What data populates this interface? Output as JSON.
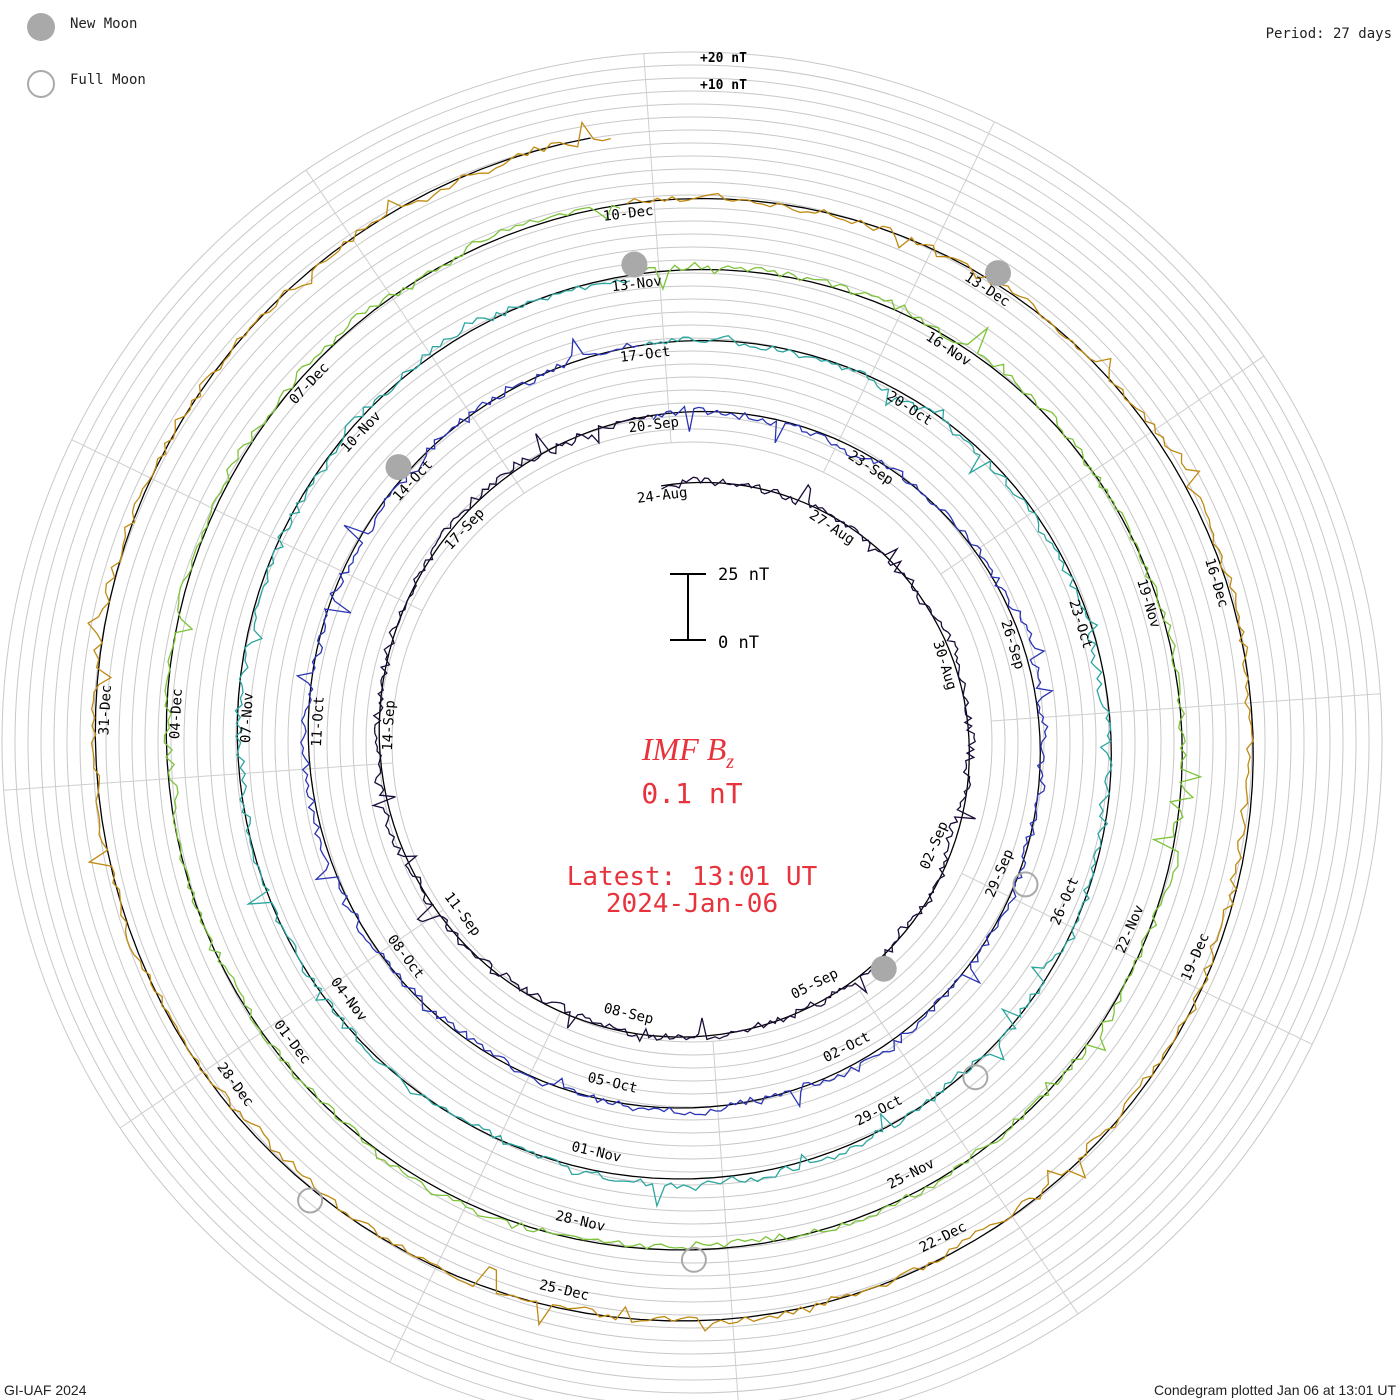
{
  "chart_data": {
    "type": "line",
    "layout": "polar-spiral",
    "title": "IMF B",
    "title_subscript": "z",
    "current_value": "0.1 nT",
    "latest_label": "Latest: 13:01 UT",
    "latest_date": "2024-Jan-06",
    "period_label": "Period: 27 days",
    "scale_bar": {
      "top_label": "25 nT",
      "bottom_label": "0 nT"
    },
    "ring_labels": [
      "+20 nT",
      "+10 nT"
    ],
    "legend": [
      {
        "label": "New Moon",
        "marker": "filled-circle",
        "color": "#a9a9a9"
      },
      {
        "label": "Full Moon",
        "marker": "open-circle",
        "color": "#a9a9a9"
      }
    ],
    "credit": "GI-UAF 2024",
    "plotted_label": "Condegram plotted Jan 06 at 13:01 UT",
    "series": [
      {
        "color": "#1c0c3a",
        "dates": [
          "24-Aug",
          "27-Aug",
          "30-Aug",
          "02-Sep",
          "05-Sep",
          "08-Sep",
          "11-Sep",
          "14-Sep",
          "17-Sep"
        ]
      },
      {
        "color": "#2b35b5",
        "dates": [
          "20-Sep",
          "23-Sep",
          "26-Sep",
          "29-Sep",
          "02-Oct",
          "05-Oct",
          "08-Oct",
          "11-Oct",
          "14-Oct"
        ]
      },
      {
        "color": "#2aa6a0",
        "dates": [
          "17-Oct",
          "20-Oct",
          "23-Oct",
          "26-Oct",
          "29-Oct",
          "01-Nov",
          "04-Nov",
          "07-Nov",
          "10-Nov"
        ]
      },
      {
        "color": "#7cc33a",
        "dates": [
          "13-Nov",
          "16-Nov",
          "19-Nov",
          "22-Nov",
          "25-Nov",
          "28-Nov",
          "01-Dec",
          "04-Dec",
          "07-Dec"
        ]
      },
      {
        "color": "#c08a12",
        "dates": [
          "10-Dec",
          "13-Dec",
          "16-Dec",
          "19-Dec",
          "22-Dec",
          "25-Dec",
          "28-Dec",
          "31-Dec"
        ]
      },
      {
        "color": "#c0391b",
        "dates": []
      }
    ],
    "new_moons": [
      "04-Sep",
      "14-Oct",
      "13-Nov",
      "13-Dec"
    ],
    "full_moons": [
      "29-Sep",
      "28-Oct",
      "27-Nov",
      "27-Dec"
    ]
  }
}
